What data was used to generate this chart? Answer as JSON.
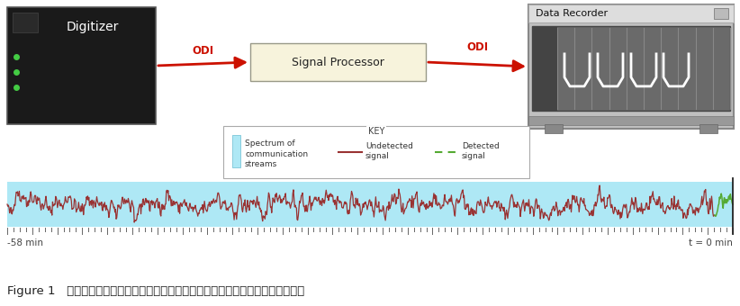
{
  "bg_color": "#ffffff",
  "spectrum_bg": "#aee8f5",
  "undetected_color": "#993333",
  "detected_color": "#55aa33",
  "digitizer_bg": "#1a1a1a",
  "digitizer_text": "Digitizer",
  "signal_processor_text": "Signal Processor",
  "data_recorder_text": "Data Recorder",
  "odi_label": "ODI",
  "arrow_color": "#cc1100",
  "key_title": "KEY",
  "key_spectrum_label": "Spectrum of\ncommunication\nstreams",
  "key_undetected_label": "Undetected\nsignal",
  "key_detected_label": "Detected\nsignal",
  "x_left_label": "-58 min",
  "x_right_label": "t = 0 min",
  "caption": "Figure 1   未検出信号（赤）と検出信号（緑）を含む、通信タイプのスペクトル表現",
  "caption_fontsize": 9.5,
  "seed": 42,
  "fig_w": 8.22,
  "fig_h": 3.4,
  "dpi": 100
}
